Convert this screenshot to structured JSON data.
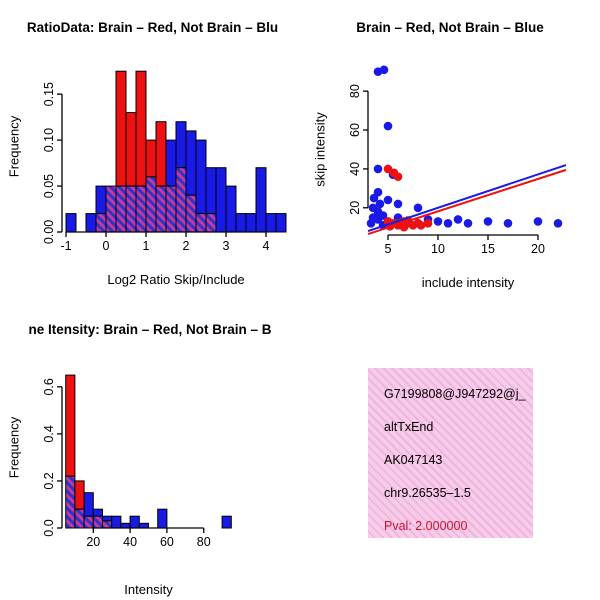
{
  "page": {
    "background": "#FFFFFF"
  },
  "chart_data": [
    {
      "name": "log2-ratio-histogram",
      "type": "bar",
      "subtype": "overlapping-histogram",
      "title": "RatioData: Brain – Red, Not Brain – Blu",
      "xlabel": "Log2 Ratio Skip/Include",
      "ylabel": "Frequency",
      "bin_start": -1.0,
      "bin_width": 0.25,
      "series": [
        {
          "name": "not-brain-blue",
          "color": "#1A1AE6",
          "values": [
            0.02,
            0,
            0.02,
            0.05,
            0.05,
            0.05,
            0.05,
            0.05,
            0.06,
            0.05,
            0.1,
            0.12,
            0.11,
            0.1,
            0.07,
            0.07,
            0.05,
            0.02,
            0.02,
            0.07,
            0.02,
            0.02
          ]
        },
        {
          "name": "brain-red",
          "color": "#EE1111",
          "values": [
            0,
            0,
            0,
            0.02,
            0.05,
            0.175,
            0.13,
            0.175,
            0.1,
            0.12,
            0.05,
            0.07,
            0.04,
            0.02,
            0.02,
            0,
            0,
            0,
            0,
            0,
            0,
            0
          ]
        }
      ],
      "overlap_fill": "purple-hatch",
      "xticks": [
        {
          "v": -1,
          "l": "-1"
        },
        {
          "v": 0,
          "l": "0"
        },
        {
          "v": 1,
          "l": "1"
        },
        {
          "v": 2,
          "l": "2"
        },
        {
          "v": 3,
          "l": "3"
        },
        {
          "v": 4,
          "l": "4"
        }
      ],
      "yticks": [
        {
          "v": 0,
          "l": "0.00"
        },
        {
          "v": 0.05,
          "l": "0.05"
        },
        {
          "v": 0.1,
          "l": "0.10"
        },
        {
          "v": 0.15,
          "l": "0.15"
        }
      ],
      "xlim": [
        -1.1,
        4.6
      ],
      "ylim": [
        0,
        0.185
      ],
      "grid": false
    },
    {
      "name": "intensity-scatter",
      "type": "scatter",
      "title": "Brain – Red, Not Brain – Blue",
      "xlabel": "include intensity",
      "ylabel": "skip intensity",
      "series": [
        {
          "name": "not-brain-blue",
          "color": "#1A1AE6",
          "points": [
            [
              3.3,
              12
            ],
            [
              3.5,
              15
            ],
            [
              3.5,
              20
            ],
            [
              3.6,
              25
            ],
            [
              4,
              90
            ],
            [
              4.6,
              91
            ],
            [
              4,
              40
            ],
            [
              4,
              28
            ],
            [
              4.2,
              22
            ],
            [
              4,
              18
            ],
            [
              4,
              14
            ],
            [
              4.5,
              16
            ],
            [
              4.5,
              11
            ],
            [
              5,
              62
            ],
            [
              5,
              24
            ],
            [
              5,
              13
            ],
            [
              5.5,
              37
            ],
            [
              6,
              22
            ],
            [
              6,
              15
            ],
            [
              6.5,
              12
            ],
            [
              7,
              13
            ],
            [
              8,
              20
            ],
            [
              8,
              12
            ],
            [
              9,
              14
            ],
            [
              10,
              13
            ],
            [
              11,
              12
            ],
            [
              12,
              14
            ],
            [
              13,
              12
            ],
            [
              15,
              13
            ],
            [
              17,
              12
            ],
            [
              20,
              13
            ],
            [
              22,
              12
            ]
          ]
        },
        {
          "name": "brain-red",
          "color": "#EE1111",
          "points": [
            [
              5,
              40
            ],
            [
              5.6,
              38
            ],
            [
              6,
              36
            ],
            [
              5,
              13
            ],
            [
              5.2,
              10.5
            ],
            [
              5.5,
              12
            ],
            [
              6,
              12
            ],
            [
              6,
              11
            ],
            [
              6.5,
              13
            ],
            [
              6.6,
              10
            ],
            [
              7,
              12
            ],
            [
              7,
              13.5
            ],
            [
              7.5,
              11
            ],
            [
              8,
              12
            ],
            [
              8.3,
              11
            ],
            [
              9,
              12
            ]
          ]
        }
      ],
      "lines": [
        {
          "name": "fit-not-brain",
          "color": "#1A1AE6",
          "x1": 3,
          "y1": 8,
          "x2": 22.8,
          "y2": 42
        },
        {
          "name": "fit-brain",
          "color": "#EE1111",
          "x1": 3,
          "y1": 6.5,
          "x2": 22.8,
          "y2": 39.5
        }
      ],
      "xticks": [
        {
          "v": 5,
          "l": "5"
        },
        {
          "v": 10,
          "l": "10"
        },
        {
          "v": 15,
          "l": "15"
        },
        {
          "v": 20,
          "l": "20"
        }
      ],
      "yticks": [
        {
          "v": 20,
          "l": "20"
        },
        {
          "v": 40,
          "l": "40"
        },
        {
          "v": 60,
          "l": "60"
        },
        {
          "v": 80,
          "l": "80"
        }
      ],
      "xlim": [
        3,
        23
      ],
      "ylim": [
        6,
        95
      ],
      "grid": false
    },
    {
      "name": "gene-intensity-histogram",
      "type": "bar",
      "subtype": "overlapping-histogram",
      "title": "ne Itensity: Brain – Red, Not Brain – B",
      "xlabel": "Intensity",
      "ylabel": "Frequency",
      "bin_start": 5,
      "bin_width": 5,
      "series": [
        {
          "name": "not-brain-blue",
          "color": "#1A1AE6",
          "values": [
            0.22,
            0.08,
            0.15,
            0.08,
            0.05,
            0.05,
            0.02,
            0.05,
            0.02,
            0,
            0.08,
            0,
            0,
            0,
            0,
            0,
            0,
            0.05
          ]
        },
        {
          "name": "brain-red",
          "color": "#EE1111",
          "values": [
            0.65,
            0.2,
            0.05,
            0.05,
            0.03,
            0,
            0,
            0,
            0,
            0,
            0,
            0,
            0,
            0,
            0,
            0,
            0,
            0
          ]
        }
      ],
      "overlap_fill": "purple-hatch",
      "xticks": [
        {
          "v": 20,
          "l": "20"
        },
        {
          "v": 40,
          "l": "40"
        },
        {
          "v": 60,
          "l": "60"
        },
        {
          "v": 80,
          "l": "80"
        }
      ],
      "yticks": [
        {
          "v": 0,
          "l": "0.0"
        },
        {
          "v": 0.2,
          "l": "0.2"
        },
        {
          "v": 0.4,
          "l": "0.4"
        },
        {
          "v": 0.6,
          "l": "0.6"
        }
      ],
      "xlim": [
        3,
        97
      ],
      "ylim": [
        0,
        0.68
      ],
      "grid": false
    }
  ],
  "info_box": {
    "background": "#F7CCE9",
    "hatch_color": "#EEB4DE",
    "lines": [
      "G7199808@J947292@j_",
      "altTxEnd",
      "AK047143",
      "chr9.26535–1.5"
    ],
    "pval": "Pval: 2.000000",
    "pval_color": "#CC1133"
  }
}
